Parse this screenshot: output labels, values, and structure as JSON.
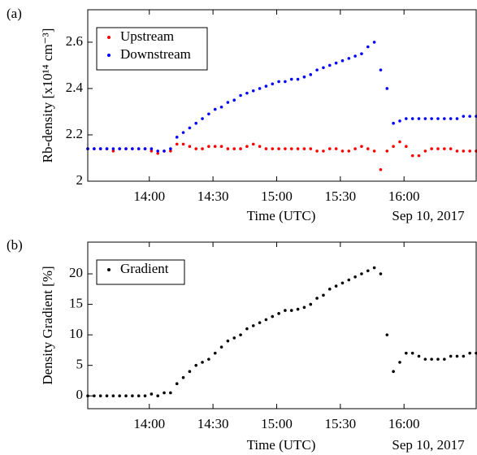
{
  "chart_data": [
    {
      "type": "scatter",
      "panel_label": "(a)",
      "ylabel": "Rb-density  [x10¹⁴ cm⁻³]",
      "xlabel": "Time (UTC)",
      "date_label": "Sep 10, 2017",
      "x": [
        "13:31",
        "13:34",
        "13:37",
        "13:40",
        "13:43",
        "13:46",
        "13:49",
        "13:52",
        "13:55",
        "13:58",
        "14:01",
        "14:04",
        "14:07",
        "14:10",
        "14:13",
        "14:16",
        "14:19",
        "14:22",
        "14:25",
        "14:28",
        "14:31",
        "14:34",
        "14:37",
        "14:40",
        "14:43",
        "14:46",
        "14:49",
        "14:52",
        "14:55",
        "14:58",
        "15:01",
        "15:04",
        "15:07",
        "15:10",
        "15:13",
        "15:16",
        "15:19",
        "15:22",
        "15:25",
        "15:28",
        "15:31",
        "15:34",
        "15:37",
        "15:40",
        "15:43",
        "15:46",
        "15:49",
        "15:52",
        "15:55",
        "15:58",
        "16:01",
        "16:04",
        "16:07",
        "16:10",
        "16:13",
        "16:16",
        "16:19",
        "16:22",
        "16:25",
        "16:28",
        "16:31",
        "16:34"
      ],
      "xlim": [
        "13:31",
        "16:34"
      ],
      "xticks": [
        "14:00",
        "14:30",
        "15:00",
        "15:30",
        "16:00"
      ],
      "ylim": [
        2,
        2.74
      ],
      "yticks": [
        2,
        2.2,
        2.4,
        2.6
      ],
      "legend": "upper left",
      "series": [
        {
          "name": "Upstream",
          "color": "#ff0000",
          "values": [
            2.14,
            2.14,
            2.14,
            2.14,
            2.13,
            2.14,
            2.14,
            2.14,
            2.14,
            2.14,
            2.13,
            2.12,
            2.13,
            2.13,
            2.16,
            2.16,
            2.15,
            2.14,
            2.14,
            2.15,
            2.15,
            2.15,
            2.14,
            2.14,
            2.14,
            2.15,
            2.16,
            2.15,
            2.14,
            2.14,
            2.14,
            2.14,
            2.14,
            2.14,
            2.14,
            2.14,
            2.13,
            2.13,
            2.14,
            2.14,
            2.13,
            2.13,
            2.14,
            2.15,
            2.14,
            2.13,
            2.05,
            2.13,
            2.15,
            2.17,
            2.15,
            2.11,
            2.11,
            2.13,
            2.14,
            2.14,
            2.14,
            2.14,
            2.13,
            2.13,
            2.13,
            2.13
          ]
        },
        {
          "name": "Downstream",
          "color": "#0000ff",
          "values": [
            2.14,
            2.14,
            2.14,
            2.14,
            2.14,
            2.14,
            2.14,
            2.14,
            2.14,
            2.14,
            2.14,
            2.13,
            2.13,
            2.14,
            2.19,
            2.21,
            2.23,
            2.25,
            2.27,
            2.29,
            2.31,
            2.32,
            2.34,
            2.35,
            2.37,
            2.38,
            2.39,
            2.4,
            2.41,
            2.42,
            2.43,
            2.43,
            2.44,
            2.44,
            2.45,
            2.46,
            2.48,
            2.49,
            2.5,
            2.51,
            2.52,
            2.53,
            2.54,
            2.55,
            2.58,
            2.6,
            2.48,
            2.4,
            2.25,
            2.26,
            2.27,
            2.27,
            2.27,
            2.27,
            2.27,
            2.27,
            2.27,
            2.27,
            2.27,
            2.28,
            2.28,
            2.28
          ]
        }
      ]
    },
    {
      "type": "scatter",
      "panel_label": "(b)",
      "ylabel": "Density Gradient  [%]",
      "xlabel": "Time (UTC)",
      "date_label": "Sep 10, 2017",
      "x": [
        "13:31",
        "13:34",
        "13:37",
        "13:40",
        "13:43",
        "13:46",
        "13:49",
        "13:52",
        "13:55",
        "13:58",
        "14:01",
        "14:04",
        "14:07",
        "14:10",
        "14:13",
        "14:16",
        "14:19",
        "14:22",
        "14:25",
        "14:28",
        "14:31",
        "14:34",
        "14:37",
        "14:40",
        "14:43",
        "14:46",
        "14:49",
        "14:52",
        "14:55",
        "14:58",
        "15:01",
        "15:04",
        "15:07",
        "15:10",
        "15:13",
        "15:16",
        "15:19",
        "15:22",
        "15:25",
        "15:28",
        "15:31",
        "15:34",
        "15:37",
        "15:40",
        "15:43",
        "15:46",
        "15:49",
        "15:52",
        "15:55",
        "15:58",
        "16:01",
        "16:04",
        "16:07",
        "16:10",
        "16:13",
        "16:16",
        "16:19",
        "16:22",
        "16:25",
        "16:28",
        "16:31",
        "16:34"
      ],
      "xlim": [
        "13:31",
        "16:34"
      ],
      "xticks": [
        "14:00",
        "14:30",
        "15:00",
        "15:30",
        "16:00"
      ],
      "ylim": [
        -2.1,
        25.2
      ],
      "yticks": [
        0,
        5,
        10,
        15,
        20
      ],
      "legend": "upper left",
      "series": [
        {
          "name": "Gradient",
          "color": "#000000",
          "values": [
            0,
            0,
            0,
            0,
            0,
            0,
            0,
            0,
            0,
            0,
            0.3,
            0,
            0.5,
            0.5,
            2,
            3,
            4,
            5,
            5.5,
            6,
            7,
            8,
            9,
            9.5,
            10,
            11,
            11.5,
            12,
            12.5,
            13,
            13.5,
            14,
            14,
            14.2,
            14.5,
            15,
            16,
            16.5,
            17.5,
            18,
            18.5,
            19,
            19.5,
            20,
            20.5,
            21,
            20,
            10,
            4,
            5.5,
            7,
            7,
            6.5,
            6,
            6,
            6,
            6,
            6.5,
            6.5,
            6.5,
            7,
            7
          ]
        }
      ]
    }
  ]
}
